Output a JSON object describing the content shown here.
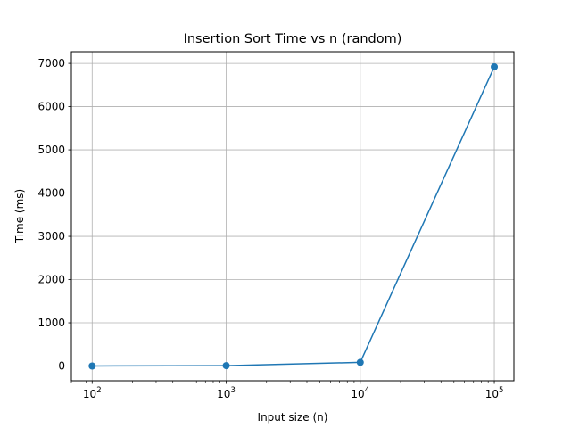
{
  "chart_data": {
    "type": "line",
    "title": "Insertion Sort Time vs n (random)",
    "xlabel": "Input size (n)",
    "ylabel": "Time (ms)",
    "x_scale": "log",
    "x": [
      100,
      1000,
      10000,
      100000
    ],
    "series": [
      {
        "values": [
          0.4,
          8.5,
          85,
          6920
        ],
        "color": "#1f77b4",
        "marker": "circle"
      }
    ],
    "x_ticks": [
      {
        "value": 100,
        "base": "10",
        "exp": "2"
      },
      {
        "value": 1000,
        "base": "10",
        "exp": "3"
      },
      {
        "value": 10000,
        "base": "10",
        "exp": "4"
      },
      {
        "value": 100000,
        "base": "10",
        "exp": "5"
      }
    ],
    "y_ticks": [
      0,
      1000,
      2000,
      3000,
      4000,
      5000,
      6000,
      7000
    ],
    "y_tick_labels": [
      "0",
      "1000",
      "2000",
      "3000",
      "4000",
      "5000",
      "6000",
      "7000"
    ],
    "xlim": [
      70,
      140000
    ],
    "ylim": [
      -340,
      7270
    ],
    "grid": true,
    "legend": "none"
  }
}
